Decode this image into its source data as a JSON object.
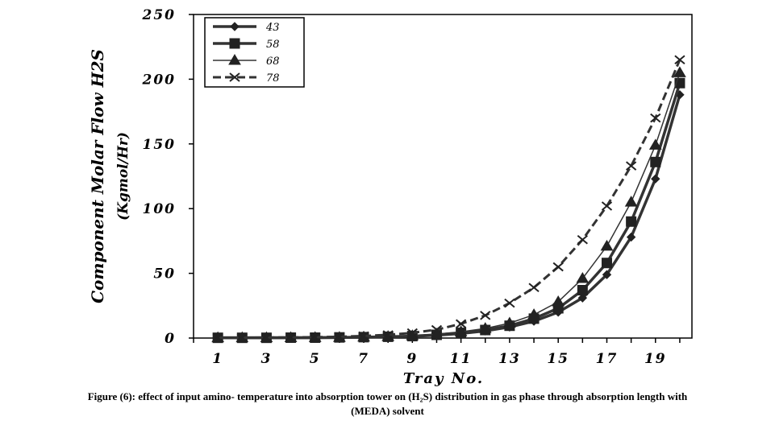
{
  "chart_data": {
    "type": "line",
    "xlabel": "Tray No.",
    "ylabel_line1": "Component Molar Flow H2S",
    "ylabel_line2": "(Kgmol/Hr)",
    "xlim": [
      0,
      20.5
    ],
    "ylim": [
      0,
      250
    ],
    "x_ticks": [
      1,
      3,
      5,
      7,
      9,
      11,
      13,
      15,
      17,
      19
    ],
    "y_ticks": [
      0,
      50,
      100,
      150,
      200,
      250
    ],
    "legend_position": "top-left",
    "x": [
      1,
      2,
      3,
      4,
      5,
      6,
      7,
      8,
      9,
      10,
      11,
      12,
      13,
      14,
      15,
      16,
      17,
      18,
      19,
      20
    ],
    "series": [
      {
        "name": "43",
        "marker": "diamond",
        "dash": "solid",
        "width": 3.5,
        "values": [
          0.2,
          0.2,
          0.2,
          0.2,
          0.3,
          0.4,
          0.6,
          0.9,
          1.3,
          2.2,
          3.5,
          5.5,
          8.5,
          13,
          20,
          31,
          49,
          78,
          123,
          188
        ]
      },
      {
        "name": "58",
        "marker": "square",
        "dash": "solid",
        "width": 3.5,
        "values": [
          0.2,
          0.2,
          0.2,
          0.3,
          0.3,
          0.5,
          0.7,
          1.0,
          1.5,
          2.5,
          4.0,
          6.2,
          9.5,
          15,
          23,
          37,
          58,
          90,
          136,
          197
        ]
      },
      {
        "name": "68",
        "marker": "triangle",
        "dash": "solid",
        "width": 1.5,
        "values": [
          0.2,
          0.2,
          0.2,
          0.3,
          0.4,
          0.5,
          0.8,
          1.2,
          1.8,
          3.0,
          4.8,
          7.4,
          11.5,
          18,
          28,
          46,
          71,
          105,
          149,
          205
        ]
      },
      {
        "name": "78",
        "marker": "x",
        "dash": "dashed",
        "width": 3,
        "values": [
          0.3,
          0.3,
          0.4,
          0.5,
          0.7,
          1.0,
          1.6,
          2.5,
          4.0,
          6.5,
          11,
          17.5,
          27,
          39,
          55,
          76,
          102,
          133,
          170,
          215
        ]
      }
    ]
  },
  "caption": {
    "line1": "Figure (6): effect of input amino- temperature into absorption tower on (H₂S) distribution in gas phase through absorption length with",
    "line2": "(MEDA) solvent"
  }
}
